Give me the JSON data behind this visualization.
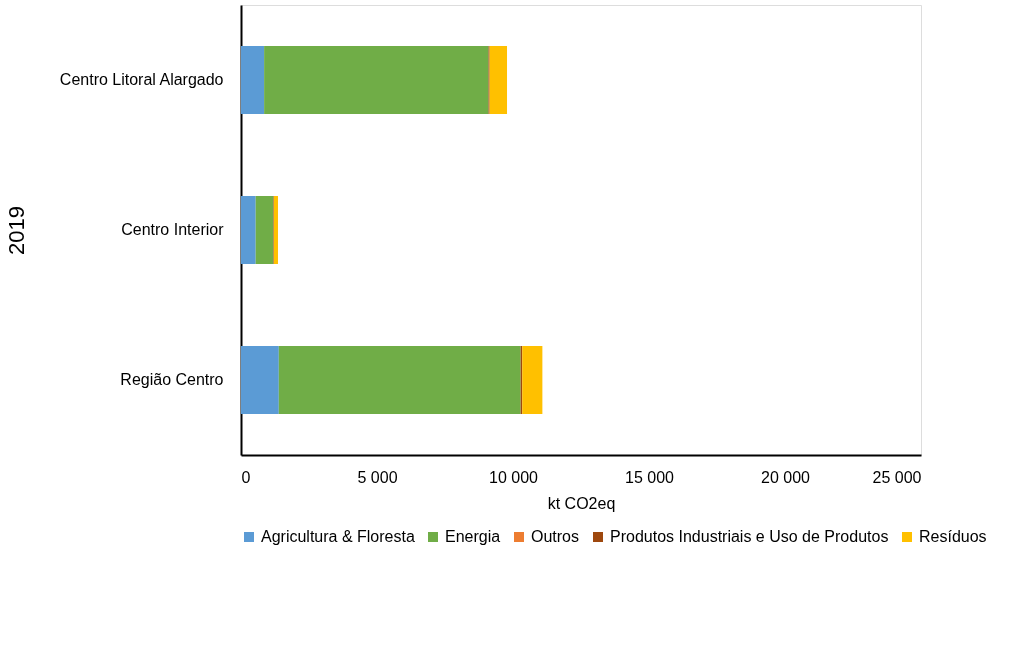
{
  "chart_data": {
    "type": "bar",
    "orientation": "horizontal",
    "stacked": true,
    "ylabel": "2019",
    "xlabel": "kt CO2eq",
    "categories": [
      "Centro Litoral Alargado",
      "Centro Interior",
      "Região Centro"
    ],
    "series": [
      {
        "name": "Agricultura & Floresta",
        "color": "#5b9bd5",
        "values": [
          850,
          540,
          1390
        ]
      },
      {
        "name": "Energia",
        "color": "#70ad47",
        "values": [
          8250,
          650,
          8890
        ]
      },
      {
        "name": "Outros",
        "color": "#ed7d31",
        "values": [
          null,
          null,
          null
        ]
      },
      {
        "name": "Produtos Industriais e Uso de Produtos",
        "color": "#9e480e",
        "values": [
          40,
          20,
          60
        ]
      },
      {
        "name": "Resíduos",
        "color": "#ffc000",
        "values": [
          640,
          150,
          740
        ]
      }
    ],
    "xlim": [
      0,
      25000
    ],
    "xticks": [
      0,
      {
        "value": 5000,
        "label": "5 000"
      },
      {
        "value": 10000,
        "label": "10 000"
      },
      {
        "value": 15000,
        "label": "15 000"
      },
      {
        "value": 20000,
        "label": "20 000"
      },
      {
        "value": 25000,
        "label": "25 000"
      }
    ],
    "grid": false,
    "legend": "bottom"
  }
}
